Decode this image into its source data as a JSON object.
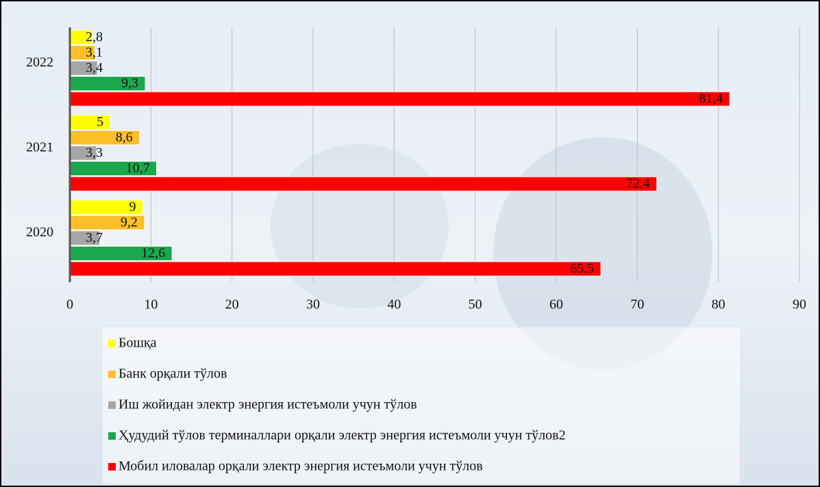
{
  "chart_data": {
    "type": "bar",
    "orientation": "horizontal",
    "categories": [
      "2020",
      "2021",
      "2022"
    ],
    "series": [
      {
        "name": "Бошқа",
        "color": "#ffff00",
        "values": [
          9,
          5,
          2.8
        ],
        "value_labels": [
          "9",
          "5",
          "2,8"
        ]
      },
      {
        "name": "Банк орқали тўлов",
        "color": "#fcbf2a",
        "values": [
          9.2,
          8.6,
          3.1
        ],
        "value_labels": [
          "9,2",
          "8,6",
          "3,1"
        ]
      },
      {
        "name": "Иш жойидан электр энергия истеъмоли учун тўлов",
        "color": "#a6a6a6",
        "values": [
          3.7,
          3.3,
          3.4
        ],
        "value_labels": [
          "3,7",
          "3,3",
          "3,4"
        ]
      },
      {
        "name": "Ҳудудий тўлов терминаллари орқали электр энергия истеъмоли учун тўлов2",
        "color": "#1ba84c",
        "values": [
          12.6,
          10.7,
          9.3
        ],
        "value_labels": [
          "12,6",
          "10,7",
          "9,3"
        ]
      },
      {
        "name": "Мобил иловалар орқали электр энергия истеъмоли учун тўлов",
        "color": "#ff0000",
        "values": [
          65.5,
          72.4,
          81.4
        ],
        "value_labels": [
          "65,5",
          "72,4",
          "81,4"
        ]
      }
    ],
    "xlim": [
      0,
      90
    ],
    "xticks": [
      0,
      10,
      20,
      30,
      40,
      50,
      60,
      70,
      80,
      90
    ],
    "grid": true,
    "legend": "bottom"
  }
}
